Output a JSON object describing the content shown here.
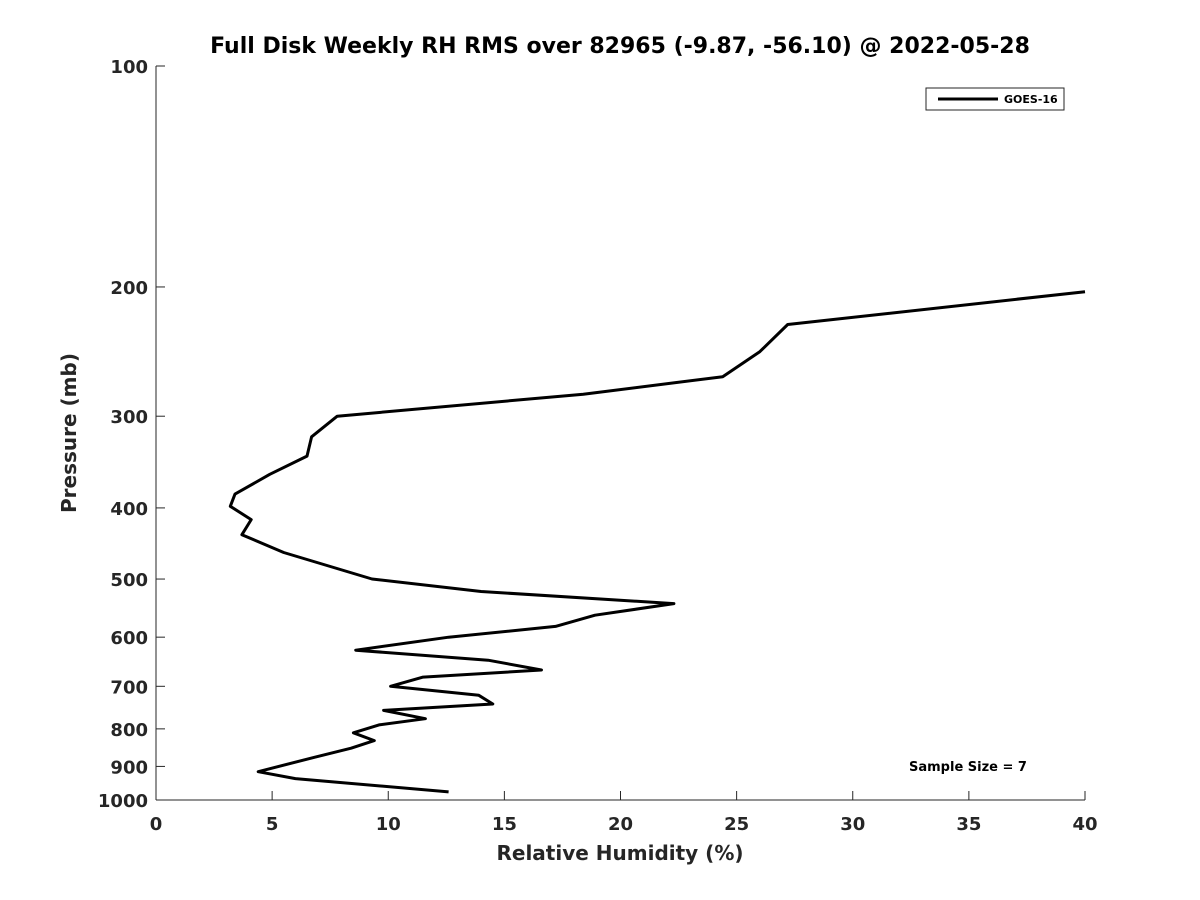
{
  "chart_data": {
    "type": "line",
    "title": "Full Disk Weekly RH RMS over 82965 (-9.87, -56.10) @ 2022-05-28",
    "xlabel": "Relative Humidity (%)",
    "ylabel": "Pressure (mb)",
    "xlim": [
      0,
      40
    ],
    "ylim": [
      100,
      1000
    ],
    "y_scale": "log",
    "y_reversed": true,
    "grid": false,
    "legend_position": "top-right",
    "x_ticks": [
      0,
      5,
      10,
      15,
      20,
      25,
      30,
      35,
      40
    ],
    "x_tick_labels": [
      "0",
      "5",
      "10",
      "15",
      "20",
      "25",
      "30",
      "35",
      "40"
    ],
    "y_ticks": [
      100,
      200,
      300,
      400,
      500,
      600,
      700,
      800,
      900,
      1000
    ],
    "y_tick_labels": [
      "100",
      "200",
      "300",
      "400",
      "500",
      "600",
      "700",
      "800",
      "900",
      "1000"
    ],
    "annotation": "Sample Size = 7",
    "line_color": "#000000",
    "series": [
      {
        "name": "GOES-16",
        "x": [
          40.0,
          27.2,
          26.0,
          24.4,
          18.4,
          7.8,
          6.7,
          6.5,
          4.9,
          3.4,
          3.2,
          4.1,
          3.7,
          5.5,
          9.3,
          14.0,
          22.3,
          18.9,
          17.2,
          12.6,
          8.6,
          14.3,
          16.6,
          11.5,
          10.1,
          13.9,
          14.5,
          9.8,
          11.6,
          9.6,
          8.5,
          9.4,
          8.4,
          6.8,
          4.4,
          6.0,
          12.6
        ],
        "y": [
          203,
          225,
          245,
          265,
          280,
          300,
          320,
          340,
          360,
          383,
          398,
          415,
          435,
          460,
          500,
          520,
          540,
          560,
          580,
          600,
          625,
          645,
          665,
          680,
          700,
          720,
          740,
          755,
          775,
          790,
          810,
          830,
          850,
          875,
          915,
          935,
          975
        ]
      }
    ]
  }
}
